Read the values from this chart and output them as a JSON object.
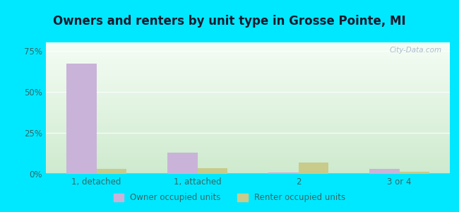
{
  "title": "Owners and renters by unit type in Grosse Pointe, MI",
  "categories": [
    "1, detached",
    "1, attached",
    "2",
    "3 or 4"
  ],
  "owner_values": [
    67.0,
    13.0,
    1.0,
    3.0
  ],
  "renter_values": [
    3.0,
    3.5,
    7.0,
    1.5
  ],
  "owner_color": "#c9b3d9",
  "renter_color": "#c8cb8a",
  "ylim": [
    0,
    80
  ],
  "yticks": [
    0,
    25,
    50,
    75
  ],
  "ytick_labels": [
    "0%",
    "25%",
    "50%",
    "75%"
  ],
  "bg_top_color": "#f5fdf5",
  "bg_bottom_color": "#ceeace",
  "outer_bg": "#00e8ff",
  "title_fontsize": 12,
  "title_color": "#1a1a2e",
  "tick_color": "#336666",
  "legend_labels": [
    "Owner occupied units",
    "Renter occupied units"
  ],
  "watermark": "City-Data.com",
  "bar_width": 0.3
}
